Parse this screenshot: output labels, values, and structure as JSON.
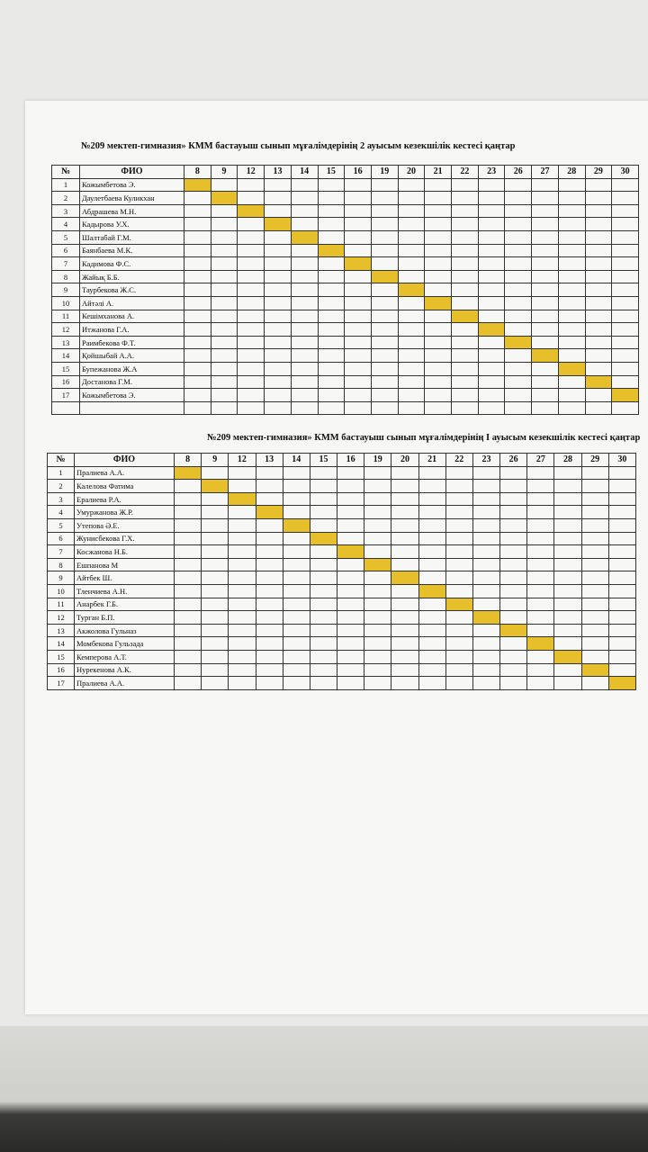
{
  "highlight_color": "#e6c02b",
  "days": [
    "8",
    "9",
    "12",
    "13",
    "14",
    "15",
    "16",
    "19",
    "20",
    "21",
    "22",
    "23",
    "26",
    "27",
    "28",
    "29",
    "30"
  ],
  "headers": {
    "num": "№",
    "name": "ФИО"
  },
  "table2shift": {
    "title": "№209 мектеп-гимназия» КММ бастауыш сынып мұғалімдерінің 2 ауысым кезекшілік  кестесі   қаңтар",
    "rows": [
      {
        "n": "1",
        "name": "Кожымбетова Э.",
        "duty_day": "8"
      },
      {
        "n": "2",
        "name": "Даулетбаева Куликхан",
        "duty_day": "9"
      },
      {
        "n": "3",
        "name": "Абдрашева М.Н.",
        "duty_day": "12"
      },
      {
        "n": "4",
        "name": "Кадырова У.Х.",
        "duty_day": "13"
      },
      {
        "n": "5",
        "name": "Шалтабай Г.М.",
        "duty_day": "14"
      },
      {
        "n": "6",
        "name": "Баянбаева М.К.",
        "duty_day": "15"
      },
      {
        "n": "7",
        "name": "Кадимова Ф.С.",
        "duty_day": "16"
      },
      {
        "n": "8",
        "name": "Жайық Б.Б.",
        "duty_day": "19"
      },
      {
        "n": "9",
        "name": "Таурбекова Ж.С.",
        "duty_day": "20"
      },
      {
        "n": "10",
        "name": "Айтәлі А.",
        "duty_day": "21"
      },
      {
        "n": "11",
        "name": "Кешімханова А.",
        "duty_day": "22"
      },
      {
        "n": "12",
        "name": "Итжанова Г.А.",
        "duty_day": "23"
      },
      {
        "n": "13",
        "name": "Раимбекова Ф.Т.",
        "duty_day": "26"
      },
      {
        "n": "14",
        "name": "Қойшыбай А.А.",
        "duty_day": "27"
      },
      {
        "n": "15",
        "name": "Бупежанова Ж.А",
        "duty_day": "28"
      },
      {
        "n": "16",
        "name": "Достанова Г.М.",
        "duty_day": "29"
      },
      {
        "n": "17",
        "name": "Кожымбетова Э.",
        "duty_day": "30"
      }
    ]
  },
  "table1shift": {
    "title": "№209 мектеп-гимназия» КММ бастауыш сынып мұғалімдерінің І ауысым кезекшілік  кестесі   қаңтар",
    "rows": [
      {
        "n": "1",
        "name": "Пралиева А.А.",
        "duty_day": "8"
      },
      {
        "n": "2",
        "name": "Калелова Фатима",
        "duty_day": "9"
      },
      {
        "n": "3",
        "name": "Ералиева Р.А.",
        "duty_day": "12"
      },
      {
        "n": "4",
        "name": "Умуржанова Ж.Р.",
        "duty_day": "13"
      },
      {
        "n": "5",
        "name": "Утепова Ә.Е.",
        "duty_day": "14"
      },
      {
        "n": "6",
        "name": "Жунисбекова Г.Х.",
        "duty_day": "15"
      },
      {
        "n": "7",
        "name": "Косжанова Н.Б.",
        "duty_day": "16"
      },
      {
        "n": "8",
        "name": "Ешпанова М",
        "duty_day": "19"
      },
      {
        "n": "9",
        "name": "Айтбек Ш.",
        "duty_day": "20"
      },
      {
        "n": "10",
        "name": "Тленчиева А.Н.",
        "duty_day": "21"
      },
      {
        "n": "11",
        "name": "Анарбек Г.Б.",
        "duty_day": "22"
      },
      {
        "n": "12",
        "name": "Турган Б.П.",
        "duty_day": "23"
      },
      {
        "n": "13",
        "name": "Акжолова Гульназ",
        "duty_day": "26"
      },
      {
        "n": "14",
        "name": "Момбекова Гульзада",
        "duty_day": "27"
      },
      {
        "n": "15",
        "name": "Кемперова А.Т.",
        "duty_day": "28"
      },
      {
        "n": "16",
        "name": "Нурекенова А.К.",
        "duty_day": "29"
      },
      {
        "n": "17",
        "name": "Пралиева А.А.",
        "duty_day": "30"
      }
    ]
  }
}
